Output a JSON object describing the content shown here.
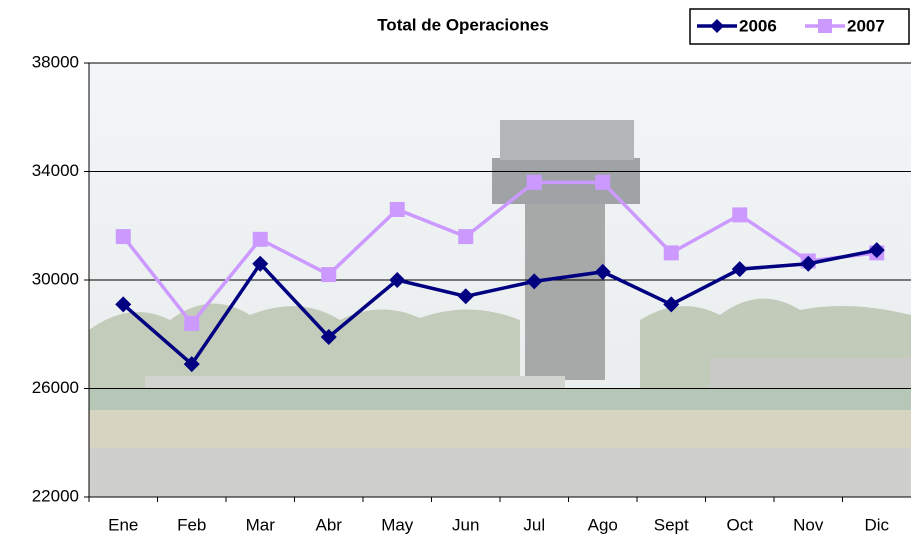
{
  "chart_data": {
    "type": "line",
    "title": "Total de Operaciones",
    "categories": [
      "Ene",
      "Feb",
      "Mar",
      "Abr",
      "May",
      "Jun",
      "Jul",
      "Ago",
      "Sept",
      "Oct",
      "Nov",
      "Dic"
    ],
    "series": [
      {
        "name": "2006",
        "color": "#000080",
        "marker": "diamond",
        "values": [
          29100,
          26900,
          30600,
          27900,
          30000,
          29400,
          29950,
          30300,
          29100,
          30400,
          30600,
          31100
        ]
      },
      {
        "name": "2007",
        "color": "#cc99ff",
        "marker": "square",
        "values": [
          31600,
          28400,
          31500,
          30200,
          32600,
          31600,
          33600,
          33600,
          31000,
          32400,
          30700,
          31000
        ]
      }
    ],
    "ylim": [
      22000,
      38000
    ],
    "yticks": [
      22000,
      26000,
      30000,
      34000,
      38000
    ],
    "grid": true,
    "legend": "top-right"
  }
}
